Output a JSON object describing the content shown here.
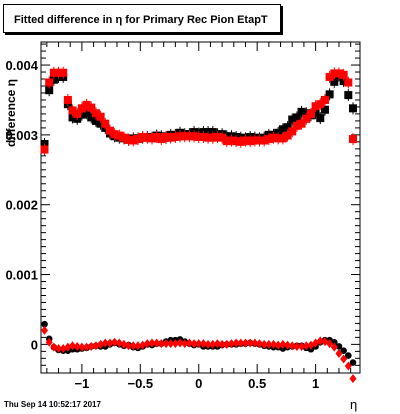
{
  "title": "Fitted difference in  η for Primary Rec Pion EtapT",
  "footer": "Thu Sep 14 10:52:17 2017",
  "chart_data": {
    "type": "scatter",
    "title": "Fitted difference in  η for Primary Rec Pion EtapT",
    "xlabel": "η",
    "ylabel": "difference η",
    "xlim": [
      -1.35,
      1.38
    ],
    "ylim": [
      -0.00041,
      0.00433
    ],
    "xticks": [
      -1,
      -0.5,
      0,
      0.5,
      1
    ],
    "xtick_labels": [
      "−1",
      "−0.5",
      "0",
      "0.5",
      "1"
    ],
    "yticks": [
      0,
      0.001,
      0.002,
      0.003,
      0.004
    ],
    "ytick_labels": [
      "0",
      "0.001",
      "0.002",
      "0.003",
      "0.004"
    ],
    "grid": false,
    "series": [
      {
        "color": "#000000",
        "marker": "square",
        "x": [
          -1.32,
          -1.28,
          -1.24,
          -1.2,
          -1.16,
          -1.12,
          -1.08,
          -1.04,
          -1.0,
          -0.96,
          -0.92,
          -0.88,
          -0.84,
          -0.8,
          -0.76,
          -0.72,
          -0.68,
          -0.64,
          -0.6,
          -0.56,
          -0.52,
          -0.48,
          -0.44,
          -0.4,
          -0.36,
          -0.32,
          -0.28,
          -0.24,
          -0.2,
          -0.16,
          -0.12,
          -0.08,
          -0.04,
          0.0,
          0.04,
          0.08,
          0.12,
          0.16,
          0.2,
          0.24,
          0.28,
          0.32,
          0.36,
          0.4,
          0.44,
          0.48,
          0.52,
          0.56,
          0.6,
          0.64,
          0.68,
          0.72,
          0.76,
          0.8,
          0.84,
          0.88,
          0.92,
          0.96,
          1.0,
          1.04,
          1.08,
          1.12,
          1.16,
          1.2,
          1.24,
          1.28,
          1.32
        ],
        "y": [
          0.00287,
          0.00364,
          0.00379,
          0.00383,
          0.00383,
          0.00344,
          0.00325,
          0.00323,
          0.00329,
          0.00331,
          0.00325,
          0.0032,
          0.00316,
          0.0031,
          0.00302,
          0.00298,
          0.00296,
          0.00295,
          0.00293,
          0.00295,
          0.00295,
          0.00296,
          0.00297,
          0.00296,
          0.00299,
          0.00298,
          0.00296,
          0.003,
          0.003,
          0.00303,
          0.00301,
          0.00301,
          0.00304,
          0.00302,
          0.00304,
          0.00304,
          0.00304,
          0.00301,
          0.00301,
          0.00298,
          0.00298,
          0.00297,
          0.00296,
          0.00295,
          0.00297,
          0.00296,
          0.00295,
          0.00296,
          0.003,
          0.003,
          0.00303,
          0.00308,
          0.00311,
          0.00322,
          0.00325,
          0.00333,
          0.00331,
          0.00328,
          0.00331,
          0.00324,
          0.00336,
          0.00358,
          0.00376,
          0.00385,
          0.00377,
          0.00357,
          0.00338
        ]
      },
      {
        "color": "#ff0000",
        "marker": "square",
        "x": [
          -1.32,
          -1.28,
          -1.24,
          -1.2,
          -1.16,
          -1.12,
          -1.08,
          -1.04,
          -1.0,
          -0.96,
          -0.92,
          -0.88,
          -0.84,
          -0.8,
          -0.76,
          -0.72,
          -0.68,
          -0.64,
          -0.6,
          -0.56,
          -0.52,
          -0.48,
          -0.44,
          -0.4,
          -0.36,
          -0.32,
          -0.28,
          -0.24,
          -0.2,
          -0.16,
          -0.12,
          -0.08,
          -0.04,
          0.0,
          0.04,
          0.08,
          0.12,
          0.16,
          0.2,
          0.24,
          0.28,
          0.32,
          0.36,
          0.4,
          0.44,
          0.48,
          0.52,
          0.56,
          0.6,
          0.64,
          0.68,
          0.72,
          0.76,
          0.8,
          0.84,
          0.88,
          0.92,
          0.96,
          1.0,
          1.04,
          1.08,
          1.12,
          1.16,
          1.2,
          1.24,
          1.28,
          1.32
        ],
        "y": [
          0.00279,
          0.00375,
          0.00389,
          0.00389,
          0.00389,
          0.0035,
          0.00335,
          0.0033,
          0.00338,
          0.00343,
          0.00339,
          0.00331,
          0.00326,
          0.00316,
          0.00306,
          0.00301,
          0.00299,
          0.00296,
          0.00293,
          0.00292,
          0.00294,
          0.00297,
          0.00296,
          0.00295,
          0.00297,
          0.00294,
          0.00297,
          0.00296,
          0.00297,
          0.00298,
          0.00298,
          0.00298,
          0.00298,
          0.00297,
          0.00297,
          0.00296,
          0.00296,
          0.00297,
          0.00296,
          0.00291,
          0.00292,
          0.00291,
          0.0029,
          0.00292,
          0.00291,
          0.00292,
          0.00292,
          0.00292,
          0.00294,
          0.00296,
          0.00295,
          0.00295,
          0.00299,
          0.00305,
          0.00313,
          0.00316,
          0.00323,
          0.0033,
          0.00341,
          0.00344,
          0.0035,
          0.00383,
          0.00388,
          0.00388,
          0.00386,
          0.00375,
          0.00294
        ]
      },
      {
        "color": "#000000",
        "marker": "circle",
        "x": [
          -1.32,
          -1.28,
          -1.24,
          -1.2,
          -1.16,
          -1.12,
          -1.08,
          -1.04,
          -1.0,
          -0.96,
          -0.92,
          -0.88,
          -0.84,
          -0.8,
          -0.76,
          -0.72,
          -0.68,
          -0.64,
          -0.6,
          -0.56,
          -0.52,
          -0.48,
          -0.44,
          -0.4,
          -0.36,
          -0.32,
          -0.28,
          -0.24,
          -0.2,
          -0.16,
          -0.12,
          -0.08,
          -0.04,
          0.0,
          0.04,
          0.08,
          0.12,
          0.16,
          0.2,
          0.24,
          0.28,
          0.32,
          0.36,
          0.4,
          0.44,
          0.48,
          0.52,
          0.56,
          0.6,
          0.64,
          0.68,
          0.72,
          0.76,
          0.8,
          0.84,
          0.88,
          0.92,
          0.96,
          1.0,
          1.04,
          1.08,
          1.12,
          1.16,
          1.2,
          1.24,
          1.28,
          1.32
        ],
        "y": [
          0.00029,
          8e-05,
          -4e-05,
          -8e-05,
          -9e-05,
          -9e-05,
          -7e-05,
          -7e-05,
          -6e-05,
          -5e-05,
          -3e-05,
          -2e-05,
          -3e-05,
          -3e-05,
          0.0,
          2e-05,
          0.0,
          -2e-05,
          -1e-05,
          -4e-05,
          -5e-05,
          -3e-05,
          0.0,
          -1e-05,
          1e-05,
          1e-05,
          4e-05,
          6e-05,
          6e-05,
          7e-05,
          4e-05,
          1e-05,
          -1e-05,
          0.0,
          -3e-05,
          -3e-05,
          -3e-05,
          -3e-05,
          -1e-05,
          0.0,
          0.0,
          0.0,
          1e-05,
          1e-05,
          2e-05,
          1e-05,
          0.0,
          -2e-05,
          -3e-05,
          -4e-05,
          -4e-05,
          -6e-05,
          -4e-05,
          -3e-05,
          -2e-05,
          -2e-05,
          -5e-05,
          -7e-05,
          -3e-05,
          3e-05,
          6e-05,
          6e-05,
          3e-05,
          -3e-05,
          -9e-05,
          -0.00016,
          -0.00026
        ]
      },
      {
        "color": "#ff0000",
        "marker": "diamond",
        "x": [
          -1.32,
          -1.28,
          -1.24,
          -1.2,
          -1.16,
          -1.12,
          -1.08,
          -1.04,
          -1.0,
          -0.96,
          -0.92,
          -0.88,
          -0.84,
          -0.8,
          -0.76,
          -0.72,
          -0.68,
          -0.64,
          -0.6,
          -0.56,
          -0.52,
          -0.48,
          -0.44,
          -0.4,
          -0.36,
          -0.32,
          -0.28,
          -0.24,
          -0.2,
          -0.16,
          -0.12,
          -0.08,
          -0.04,
          0.0,
          0.04,
          0.08,
          0.12,
          0.16,
          0.2,
          0.24,
          0.28,
          0.32,
          0.36,
          0.4,
          0.44,
          0.48,
          0.52,
          0.56,
          0.6,
          0.64,
          0.68,
          0.72,
          0.76,
          0.8,
          0.84,
          0.88,
          0.92,
          0.96,
          1.0,
          1.04,
          1.08,
          1.12,
          1.16,
          1.2,
          1.24,
          1.28,
          1.32
        ],
        "y": [
          0.0002,
          3e-05,
          -4e-05,
          -6e-05,
          -6e-05,
          -4e-05,
          -2e-05,
          -3e-05,
          -4e-05,
          -4e-05,
          -3e-05,
          -2e-05,
          0.0,
          2e-05,
          2e-05,
          3e-05,
          2e-05,
          0.0,
          -2e-05,
          -2e-05,
          -2e-05,
          -1e-05,
          1e-05,
          2e-05,
          2e-05,
          1e-05,
          1e-05,
          1e-05,
          1e-05,
          2e-05,
          1e-05,
          2e-05,
          1e-05,
          1e-05,
          1e-05,
          0.0,
          0.0,
          1e-05,
          0.0,
          0.0,
          1e-05,
          2e-05,
          2e-05,
          2e-05,
          2e-05,
          2e-05,
          1e-05,
          0.0,
          0.0,
          0.0,
          -1e-05,
          0.0,
          -1e-05,
          -2e-05,
          -3e-05,
          -3e-05,
          -2e-05,
          -1e-05,
          2e-05,
          5e-05,
          4e-05,
          1e-05,
          -4e-05,
          -0.00013,
          -0.00021,
          -0.00031,
          -0.00049
        ]
      }
    ]
  }
}
